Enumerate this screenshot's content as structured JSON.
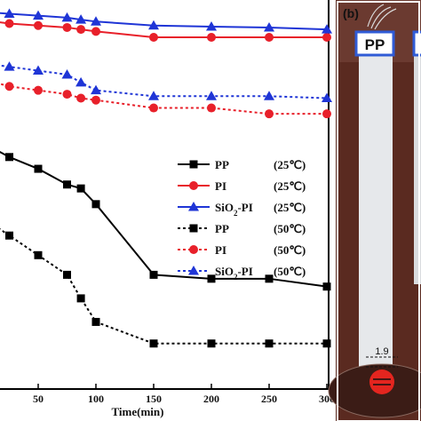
{
  "chart_data": {
    "type": "line",
    "xlabel": "Time(min)",
    "xlim": [
      0,
      310
    ],
    "ylim": [
      0,
      100
    ],
    "x_ticks": [
      50,
      100,
      150,
      200,
      250,
      300
    ],
    "grid": false,
    "legend_position": "center-right",
    "series": [
      {
        "name": "PP",
        "sub": "",
        "temp": "(25℃)",
        "color": "#000000",
        "dash": "solid",
        "marker": "square",
        "points": [
          [
            0,
            64
          ],
          [
            25,
            60
          ],
          [
            50,
            57
          ],
          [
            75,
            53
          ],
          [
            87,
            52
          ],
          [
            100,
            48
          ],
          [
            150,
            30
          ],
          [
            200,
            29
          ],
          [
            250,
            29
          ],
          [
            300,
            27
          ]
        ]
      },
      {
        "name": "PI",
        "sub": "",
        "temp": "(25℃)",
        "color": "#e8202a",
        "dash": "solid",
        "marker": "circle",
        "points": [
          [
            0,
            95
          ],
          [
            25,
            94
          ],
          [
            50,
            93.5
          ],
          [
            75,
            93
          ],
          [
            87,
            92.5
          ],
          [
            100,
            92
          ],
          [
            150,
            90.5
          ],
          [
            200,
            90.5
          ],
          [
            250,
            90.5
          ],
          [
            300,
            90.5
          ]
        ]
      },
      {
        "name": "SiO",
        "sub": "2",
        "name_suffix": "-PI",
        "temp": "(25℃)",
        "color": "#1f35d6",
        "dash": "solid",
        "marker": "triangle",
        "points": [
          [
            0,
            97
          ],
          [
            25,
            96.5
          ],
          [
            50,
            96
          ],
          [
            75,
            95.5
          ],
          [
            87,
            95
          ],
          [
            100,
            94.5
          ],
          [
            150,
            93.5
          ],
          [
            200,
            93.2
          ],
          [
            250,
            93
          ],
          [
            300,
            92.5
          ]
        ]
      },
      {
        "name": "PP",
        "sub": "",
        "temp": "(50℃)",
        "color": "#000000",
        "dash": "dotted",
        "marker": "square",
        "points": [
          [
            0,
            45
          ],
          [
            25,
            40
          ],
          [
            50,
            35
          ],
          [
            75,
            30
          ],
          [
            87,
            24
          ],
          [
            100,
            18
          ],
          [
            150,
            12.5
          ],
          [
            200,
            12.5
          ],
          [
            250,
            12.5
          ],
          [
            300,
            12.5
          ]
        ]
      },
      {
        "name": "PI",
        "sub": "",
        "temp": "(50℃)",
        "color": "#e8202a",
        "dash": "dotted",
        "marker": "circle",
        "points": [
          [
            0,
            80
          ],
          [
            25,
            78
          ],
          [
            50,
            77
          ],
          [
            75,
            76
          ],
          [
            87,
            75
          ],
          [
            100,
            74.5
          ],
          [
            150,
            72.5
          ],
          [
            200,
            72.5
          ],
          [
            250,
            71
          ],
          [
            300,
            71
          ]
        ]
      },
      {
        "name": "SiO",
        "sub": "2",
        "name_suffix": "-PI",
        "temp": "(50℃)",
        "color": "#1f35d6",
        "dash": "dotted",
        "marker": "triangle",
        "points": [
          [
            0,
            84
          ],
          [
            25,
            83
          ],
          [
            50,
            82
          ],
          [
            75,
            81
          ],
          [
            87,
            79
          ],
          [
            100,
            77
          ],
          [
            150,
            75.5
          ],
          [
            200,
            75.5
          ],
          [
            250,
            75.5
          ],
          [
            300,
            75
          ]
        ]
      }
    ]
  },
  "photo": {
    "panel_label": "(b)",
    "left_tag": "PP",
    "drop_value": "1.9"
  },
  "colors": {
    "photo_background": "#5a2a20",
    "strip": "#e6e8eb",
    "tag_border": "#2f5bd6",
    "drop": "#e4251f"
  }
}
